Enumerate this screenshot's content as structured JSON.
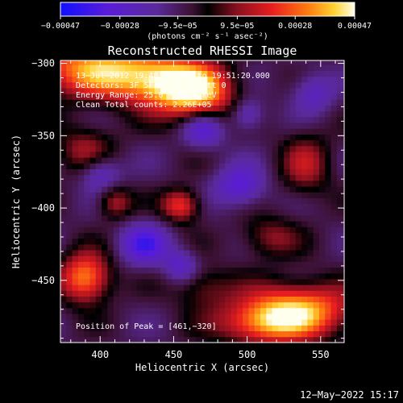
{
  "chart_data": {
    "type": "heatmap",
    "title": "Reconstructed RHESSI Image",
    "xlabel": "Heliocentric X (arcsec)",
    "ylabel": "Heliocentric Y (arcsec)",
    "xlim": [
      373,
      566
    ],
    "ylim": [
      -493,
      -298
    ],
    "x_ticks": [
      400,
      450,
      500,
      550
    ],
    "x_tick_labels": [
      "400",
      "450",
      "500",
      "550"
    ],
    "y_ticks": [
      -300,
      -350,
      -400,
      -450
    ],
    "y_tick_labels": [
      "−300",
      "−350",
      "−400",
      "−450"
    ],
    "colorbar": {
      "colormap": "rhessi-hot",
      "range": [
        -0.00047,
        0.00047
      ],
      "ticks": [
        -0.00047,
        -0.00028,
        -9.5e-05,
        9.5e-05,
        0.00028,
        0.00047
      ],
      "tick_labels": [
        "−0.00047",
        "−0.00028",
        "−9.5e−05",
        "9.5e−05",
        "0.00028",
        "0.00047"
      ],
      "unit_label": "(photons cm⁻² s⁻¹ asec⁻²)"
    },
    "annotations": {
      "time_range": "13−Jul−2012 19:48:32.000 to 19:51:20.000",
      "detectors": "Detectors: 3F 5F 6F 7F 8F  Att 0",
      "energy": "Energy Range: 25.0 − 50.0 keV",
      "clean": "Clean    Total counts: 2.26E+05"
    },
    "peak_label": "Position of Peak = [461,−320]",
    "peak": [
      461,
      -320
    ],
    "sources": [
      {
        "x": 395,
        "y": -303,
        "sx": 30,
        "sy": 14,
        "amp": 0.00042
      },
      {
        "x": 465,
        "y": -320,
        "sx": 18,
        "sy": 14,
        "amp": 0.00047
      },
      {
        "x": 438,
        "y": -312,
        "sx": 22,
        "sy": 12,
        "amp": 0.00036
      },
      {
        "x": 390,
        "y": -448,
        "sx": 12,
        "sy": 12,
        "amp": 0.00042
      },
      {
        "x": 535,
        "y": -470,
        "sx": 26,
        "sy": 13,
        "amp": 0.00044
      },
      {
        "x": 510,
        "y": -480,
        "sx": 22,
        "sy": 10,
        "amp": 0.0003
      },
      {
        "x": 455,
        "y": -398,
        "sx": 9,
        "sy": 8,
        "amp": 0.00032
      },
      {
        "x": 410,
        "y": -396,
        "sx": 8,
        "sy": 8,
        "amp": 0.00022
      },
      {
        "x": 390,
        "y": -360,
        "sx": 14,
        "sy": 12,
        "amp": 0.0002
      },
      {
        "x": 540,
        "y": -370,
        "sx": 12,
        "sy": 16,
        "amp": 0.0002
      },
      {
        "x": 515,
        "y": -420,
        "sx": 14,
        "sy": 10,
        "amp": 0.00018
      },
      {
        "x": 470,
        "y": -455,
        "sx": 14,
        "sy": 10,
        "amp": 0.00016
      },
      {
        "x": 470,
        "y": -345,
        "sx": 10,
        "sy": 9,
        "amp": -0.00026
      },
      {
        "x": 495,
        "y": -385,
        "sx": 12,
        "sy": 10,
        "amp": -0.00024
      },
      {
        "x": 430,
        "y": -425,
        "sx": 12,
        "sy": 10,
        "amp": -0.00026
      },
      {
        "x": 400,
        "y": -375,
        "sx": 10,
        "sy": 9,
        "amp": -0.00022
      },
      {
        "x": 545,
        "y": -320,
        "sx": 10,
        "sy": 10,
        "amp": -0.00018
      },
      {
        "x": 500,
        "y": -335,
        "sx": 8,
        "sy": 8,
        "amp": -0.0002
      },
      {
        "x": 455,
        "y": -440,
        "sx": 8,
        "sy": 8,
        "amp": -0.0002
      }
    ]
  },
  "footer": {
    "date": "12−May−2022 15:17"
  }
}
